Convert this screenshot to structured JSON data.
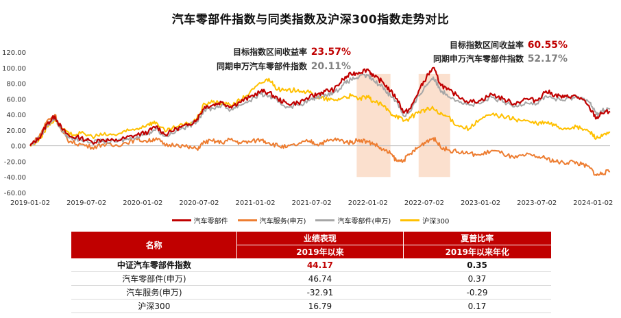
{
  "title": "汽车零部件指数与同类指数及沪深300指数走势对比",
  "chart_data": {
    "type": "line",
    "title": "汽车零部件指数与同类指数及沪深300指数走势对比",
    "x_ticks": [
      "2019-01-02",
      "2019-07-02",
      "2020-01-02",
      "2020-07-02",
      "2021-01-02",
      "2021-07-02",
      "2022-01-02",
      "2022-07-02",
      "2023-01-02",
      "2023-07-02",
      "2024-01-02"
    ],
    "y_ticks": [
      "120.00",
      "100.00",
      "80.00",
      "60.00",
      "40.00",
      "20.00",
      "0.00",
      "-20.00",
      "-40.00",
      "-60.00"
    ],
    "ylim": [
      -60,
      120
    ],
    "x_range": [
      2019.0,
      2024.15
    ],
    "series": [
      {
        "name": "汽车零部件",
        "color": "#c00000",
        "points": [
          [
            2019.0,
            0
          ],
          [
            2019.08,
            10
          ],
          [
            2019.15,
            28
          ],
          [
            2019.22,
            38
          ],
          [
            2019.28,
            22
          ],
          [
            2019.35,
            12
          ],
          [
            2019.45,
            10
          ],
          [
            2019.55,
            5
          ],
          [
            2019.65,
            8
          ],
          [
            2019.75,
            6
          ],
          [
            2019.85,
            10
          ],
          [
            2019.95,
            14
          ],
          [
            2020.05,
            18
          ],
          [
            2020.12,
            25
          ],
          [
            2020.2,
            14
          ],
          [
            2020.3,
            22
          ],
          [
            2020.4,
            26
          ],
          [
            2020.48,
            34
          ],
          [
            2020.55,
            50
          ],
          [
            2020.62,
            52
          ],
          [
            2020.7,
            56
          ],
          [
            2020.78,
            50
          ],
          [
            2020.86,
            56
          ],
          [
            2020.95,
            62
          ],
          [
            2021.05,
            70
          ],
          [
            2021.12,
            68
          ],
          [
            2021.2,
            60
          ],
          [
            2021.28,
            54
          ],
          [
            2021.38,
            55
          ],
          [
            2021.48,
            62
          ],
          [
            2021.55,
            66
          ],
          [
            2021.62,
            70
          ],
          [
            2021.7,
            72
          ],
          [
            2021.78,
            85
          ],
          [
            2021.85,
            92
          ],
          [
            2021.92,
            94
          ],
          [
            2022.0,
            98
          ],
          [
            2022.06,
            88
          ],
          [
            2022.13,
            82
          ],
          [
            2022.2,
            70
          ],
          [
            2022.26,
            60
          ],
          [
            2022.32,
            42
          ],
          [
            2022.38,
            48
          ],
          [
            2022.45,
            70
          ],
          [
            2022.52,
            88
          ],
          [
            2022.58,
            100
          ],
          [
            2022.64,
            80
          ],
          [
            2022.7,
            72
          ],
          [
            2022.8,
            64
          ],
          [
            2022.9,
            56
          ],
          [
            2023.0,
            58
          ],
          [
            2023.1,
            66
          ],
          [
            2023.2,
            60
          ],
          [
            2023.3,
            54
          ],
          [
            2023.4,
            60
          ],
          [
            2023.5,
            58
          ],
          [
            2023.58,
            70
          ],
          [
            2023.66,
            65
          ],
          [
            2023.74,
            62
          ],
          [
            2023.82,
            64
          ],
          [
            2023.9,
            60
          ],
          [
            2023.97,
            48
          ],
          [
            2024.03,
            35
          ],
          [
            2024.08,
            42
          ],
          [
            2024.15,
            44
          ]
        ]
      },
      {
        "name": "汽车服务(申万)",
        "color": "#ed7d31",
        "points": [
          [
            2019.0,
            0
          ],
          [
            2019.08,
            12
          ],
          [
            2019.15,
            32
          ],
          [
            2019.22,
            40
          ],
          [
            2019.28,
            18
          ],
          [
            2019.35,
            5
          ],
          [
            2019.45,
            2
          ],
          [
            2019.55,
            -2
          ],
          [
            2019.65,
            2
          ],
          [
            2019.75,
            0
          ],
          [
            2019.85,
            4
          ],
          [
            2019.95,
            8
          ],
          [
            2020.05,
            6
          ],
          [
            2020.12,
            10
          ],
          [
            2020.2,
            0
          ],
          [
            2020.3,
            2
          ],
          [
            2020.4,
            -2
          ],
          [
            2020.48,
            -4
          ],
          [
            2020.55,
            5
          ],
          [
            2020.62,
            6
          ],
          [
            2020.7,
            4
          ],
          [
            2020.78,
            8
          ],
          [
            2020.86,
            4
          ],
          [
            2020.95,
            5
          ],
          [
            2021.05,
            8
          ],
          [
            2021.12,
            4
          ],
          [
            2021.2,
            0
          ],
          [
            2021.28,
            -2
          ],
          [
            2021.38,
            2
          ],
          [
            2021.48,
            6
          ],
          [
            2021.55,
            2
          ],
          [
            2021.62,
            5
          ],
          [
            2021.7,
            8
          ],
          [
            2021.78,
            6
          ],
          [
            2021.85,
            4
          ],
          [
            2021.92,
            8
          ],
          [
            2022.0,
            5
          ],
          [
            2022.06,
            2
          ],
          [
            2022.13,
            -5
          ],
          [
            2022.2,
            -10
          ],
          [
            2022.26,
            -20
          ],
          [
            2022.32,
            -18
          ],
          [
            2022.38,
            -10
          ],
          [
            2022.45,
            -2
          ],
          [
            2022.52,
            6
          ],
          [
            2022.58,
            10
          ],
          [
            2022.64,
            0
          ],
          [
            2022.7,
            -5
          ],
          [
            2022.8,
            -8
          ],
          [
            2022.9,
            -10
          ],
          [
            2023.0,
            -12
          ],
          [
            2023.1,
            -6
          ],
          [
            2023.2,
            -10
          ],
          [
            2023.3,
            -16
          ],
          [
            2023.4,
            -12
          ],
          [
            2023.5,
            -14
          ],
          [
            2023.58,
            -16
          ],
          [
            2023.66,
            -20
          ],
          [
            2023.74,
            -22
          ],
          [
            2023.82,
            -20
          ],
          [
            2023.9,
            -24
          ],
          [
            2023.97,
            -28
          ],
          [
            2024.03,
            -38
          ],
          [
            2024.08,
            -35
          ],
          [
            2024.15,
            -33
          ]
        ]
      },
      {
        "name": "汽车零部件(申万)",
        "color": "#a6a6a6",
        "points": [
          [
            2019.0,
            0
          ],
          [
            2019.08,
            10
          ],
          [
            2019.15,
            26
          ],
          [
            2019.22,
            35
          ],
          [
            2019.28,
            20
          ],
          [
            2019.35,
            10
          ],
          [
            2019.45,
            8
          ],
          [
            2019.55,
            4
          ],
          [
            2019.65,
            6
          ],
          [
            2019.75,
            5
          ],
          [
            2019.85,
            8
          ],
          [
            2019.95,
            12
          ],
          [
            2020.05,
            16
          ],
          [
            2020.12,
            22
          ],
          [
            2020.2,
            12
          ],
          [
            2020.3,
            20
          ],
          [
            2020.4,
            24
          ],
          [
            2020.48,
            32
          ],
          [
            2020.55,
            46
          ],
          [
            2020.62,
            48
          ],
          [
            2020.7,
            52
          ],
          [
            2020.78,
            46
          ],
          [
            2020.86,
            52
          ],
          [
            2020.95,
            58
          ],
          [
            2021.05,
            66
          ],
          [
            2021.12,
            64
          ],
          [
            2021.2,
            56
          ],
          [
            2021.28,
            50
          ],
          [
            2021.38,
            52
          ],
          [
            2021.48,
            58
          ],
          [
            2021.55,
            62
          ],
          [
            2021.62,
            66
          ],
          [
            2021.7,
            68
          ],
          [
            2021.78,
            78
          ],
          [
            2021.85,
            85
          ],
          [
            2021.92,
            88
          ],
          [
            2022.0,
            90
          ],
          [
            2022.06,
            82
          ],
          [
            2022.13,
            76
          ],
          [
            2022.2,
            64
          ],
          [
            2022.26,
            56
          ],
          [
            2022.32,
            38
          ],
          [
            2022.38,
            44
          ],
          [
            2022.45,
            64
          ],
          [
            2022.52,
            78
          ],
          [
            2022.58,
            88
          ],
          [
            2022.64,
            72
          ],
          [
            2022.7,
            66
          ],
          [
            2022.8,
            58
          ],
          [
            2022.9,
            52
          ],
          [
            2023.0,
            54
          ],
          [
            2023.1,
            62
          ],
          [
            2023.2,
            56
          ],
          [
            2023.3,
            50
          ],
          [
            2023.4,
            56
          ],
          [
            2023.5,
            54
          ],
          [
            2023.58,
            64
          ],
          [
            2023.66,
            60
          ],
          [
            2023.74,
            58
          ],
          [
            2023.82,
            62
          ],
          [
            2023.9,
            62
          ],
          [
            2023.97,
            55
          ],
          [
            2024.03,
            40
          ],
          [
            2024.08,
            45
          ],
          [
            2024.15,
            47
          ]
        ]
      },
      {
        "name": "沪深300",
        "color": "#ffc000",
        "points": [
          [
            2019.0,
            0
          ],
          [
            2019.08,
            8
          ],
          [
            2019.15,
            24
          ],
          [
            2019.22,
            34
          ],
          [
            2019.28,
            22
          ],
          [
            2019.35,
            14
          ],
          [
            2019.45,
            16
          ],
          [
            2019.55,
            12
          ],
          [
            2019.65,
            14
          ],
          [
            2019.75,
            14
          ],
          [
            2019.85,
            18
          ],
          [
            2019.95,
            22
          ],
          [
            2020.05,
            28
          ],
          [
            2020.12,
            30
          ],
          [
            2020.2,
            18
          ],
          [
            2020.3,
            24
          ],
          [
            2020.4,
            28
          ],
          [
            2020.48,
            34
          ],
          [
            2020.55,
            54
          ],
          [
            2020.62,
            56
          ],
          [
            2020.7,
            54
          ],
          [
            2020.78,
            52
          ],
          [
            2020.86,
            58
          ],
          [
            2020.95,
            68
          ],
          [
            2021.05,
            80
          ],
          [
            2021.12,
            86
          ],
          [
            2021.2,
            72
          ],
          [
            2021.28,
            70
          ],
          [
            2021.38,
            72
          ],
          [
            2021.48,
            68
          ],
          [
            2021.55,
            62
          ],
          [
            2021.62,
            60
          ],
          [
            2021.7,
            58
          ],
          [
            2021.78,
            62
          ],
          [
            2021.85,
            64
          ],
          [
            2021.92,
            60
          ],
          [
            2022.0,
            62
          ],
          [
            2022.06,
            56
          ],
          [
            2022.13,
            52
          ],
          [
            2022.2,
            42
          ],
          [
            2022.26,
            38
          ],
          [
            2022.32,
            32
          ],
          [
            2022.38,
            36
          ],
          [
            2022.45,
            44
          ],
          [
            2022.52,
            46
          ],
          [
            2022.58,
            48
          ],
          [
            2022.64,
            40
          ],
          [
            2022.7,
            38
          ],
          [
            2022.8,
            26
          ],
          [
            2022.9,
            22
          ],
          [
            2023.0,
            34
          ],
          [
            2023.1,
            40
          ],
          [
            2023.2,
            38
          ],
          [
            2023.3,
            34
          ],
          [
            2023.4,
            32
          ],
          [
            2023.5,
            28
          ],
          [
            2023.58,
            30
          ],
          [
            2023.66,
            26
          ],
          [
            2023.74,
            22
          ],
          [
            2023.82,
            24
          ],
          [
            2023.9,
            22
          ],
          [
            2023.97,
            18
          ],
          [
            2024.03,
            10
          ],
          [
            2024.08,
            12
          ],
          [
            2024.15,
            17
          ]
        ]
      }
    ],
    "highlight_periods": [
      [
        2021.9,
        2022.2
      ],
      [
        2022.45,
        2022.73
      ]
    ],
    "annotations": [
      {
        "label": "目标指数区间收益率",
        "value": "23.57%",
        "color": "#c00000"
      },
      {
        "label": "同期申万汽车零部件指数",
        "value": "20.11%",
        "color": "#808080"
      },
      {
        "label": "目标指数区间收益率",
        "value": "60.55%",
        "color": "#c00000"
      },
      {
        "label": "同期申万汽车零部件指数",
        "value": "52.17%",
        "color": "#808080"
      }
    ]
  },
  "legend": [
    "汽车零部件",
    "汽车服务(申万)",
    "汽车零部件(申万)",
    "沪深300"
  ],
  "table": {
    "headers": {
      "name": "名称",
      "perf_top": "业绩表现",
      "perf_sub": "2019年以来",
      "sharpe_top": "夏普比率",
      "sharpe_sub": "2019年以来年化"
    },
    "rows": [
      {
        "name": "中证汽车零部件指数",
        "perf": "44.17",
        "sharpe": "0.35"
      },
      {
        "name": "汽车零部件(申万)",
        "perf": "46.74",
        "sharpe": "0.37"
      },
      {
        "name": "汽车服务(申万)",
        "perf": "-32.91",
        "sharpe": "-0.29"
      },
      {
        "name": "沪深300",
        "perf": "16.79",
        "sharpe": "0.17"
      }
    ]
  }
}
